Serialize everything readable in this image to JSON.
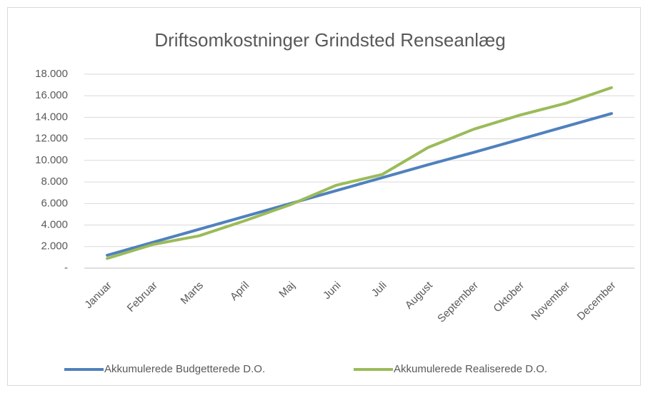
{
  "chart_data": {
    "type": "line",
    "title": "Driftsomkostninger Grindsted Renseanlæg",
    "categories": [
      "Januar",
      "Februar",
      "Marts",
      "April",
      "Maj",
      "Juni",
      "Juli",
      "August",
      "September",
      "Oktober",
      "November",
      "December"
    ],
    "series": [
      {
        "name": "Akkumulerede Budgetterede D.O.",
        "color": "#4f81bd",
        "values": [
          1200,
          2400,
          3600,
          4800,
          6000,
          7200,
          8400,
          9600,
          10750,
          11950,
          13150,
          14350
        ]
      },
      {
        "name": "Akkumulerede Realiserede D.O.",
        "color": "#9bbb59",
        "values": [
          900,
          2200,
          3000,
          4400,
          5900,
          7700,
          8700,
          11200,
          12900,
          14200,
          15300,
          16750
        ]
      }
    ],
    "ylim": [
      0,
      18000
    ],
    "yticks": [
      {
        "value": 0,
        "label": "-"
      },
      {
        "value": 2000,
        "label": "2.000"
      },
      {
        "value": 4000,
        "label": "4.000"
      },
      {
        "value": 6000,
        "label": "6.000"
      },
      {
        "value": 8000,
        "label": "8.000"
      },
      {
        "value": 10000,
        "label": "10.000"
      },
      {
        "value": 12000,
        "label": "12.000"
      },
      {
        "value": 14000,
        "label": "14.000"
      },
      {
        "value": 16000,
        "label": "16.000"
      },
      {
        "value": 18000,
        "label": "18.000"
      }
    ],
    "grid": true,
    "legend": "bottom"
  }
}
